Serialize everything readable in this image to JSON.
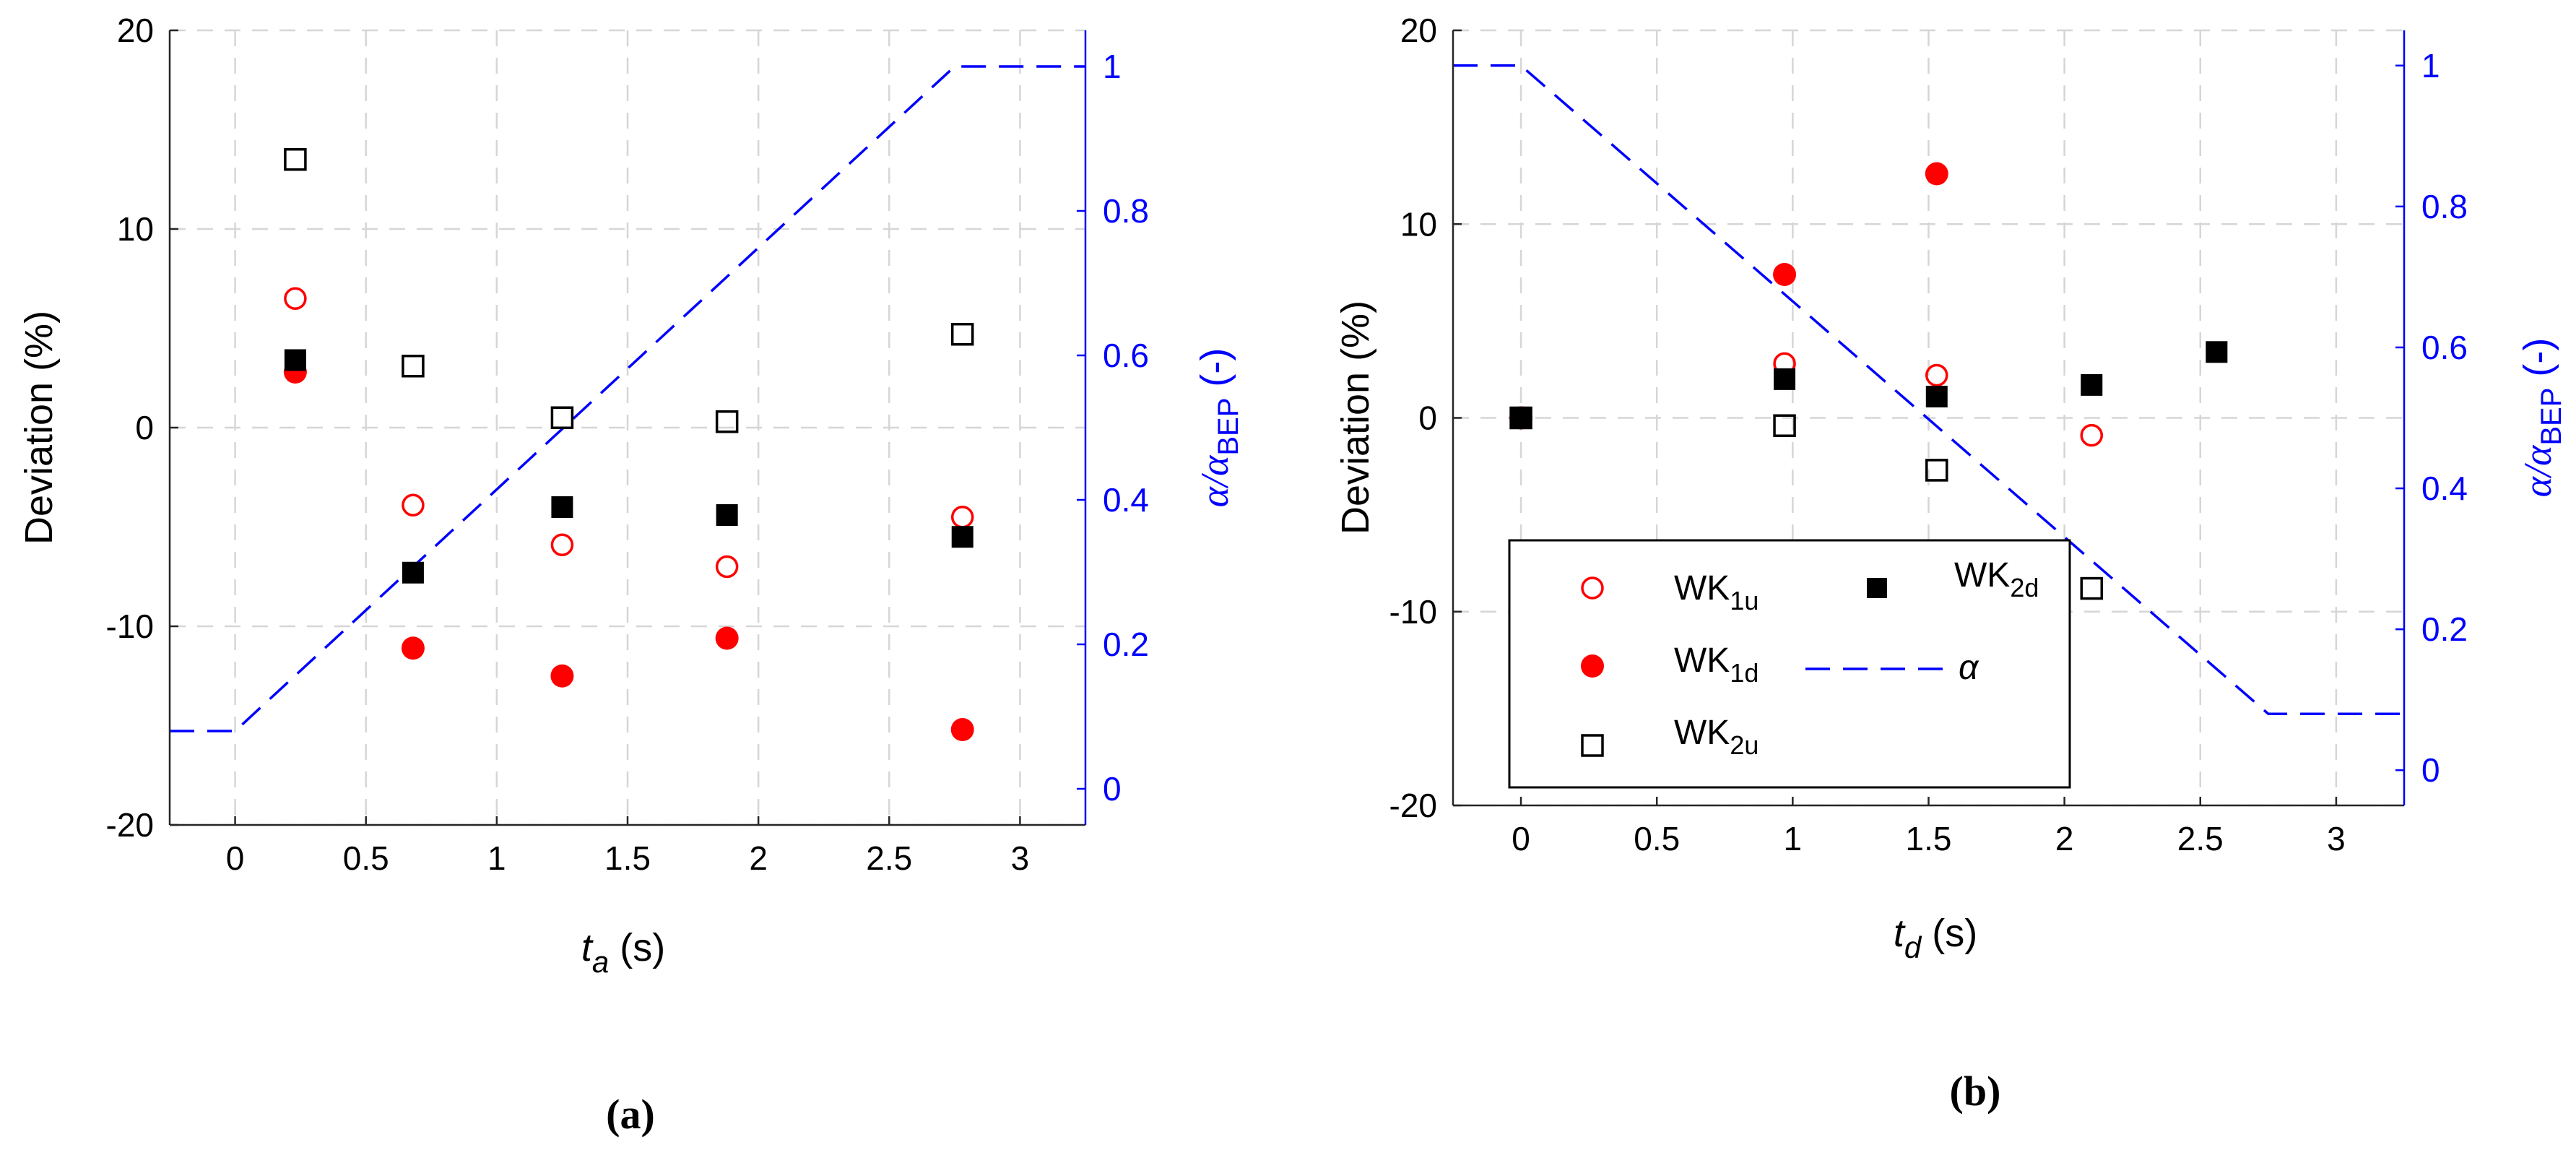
{
  "chart_data": [
    {
      "panel": "a",
      "type": "scatter",
      "panel_label": "(a)",
      "xlabel_var": "t",
      "xlabel_sub": "a",
      "xlabel_unit": " (s)",
      "ylabel": "Deviation (%)",
      "y2label_main": "α/α",
      "y2label_sub": "BEP",
      "y2label_unit": " (-)",
      "xlim": [
        -0.25,
        3.25
      ],
      "ylim": [
        -20,
        20
      ],
      "y2lim": [
        -0.05,
        1.05
      ],
      "xticks": [
        "0",
        "0.5",
        "1",
        "1.5",
        "2",
        "2.5",
        "3"
      ],
      "xtick_values": [
        0,
        0.5,
        1,
        1.5,
        2,
        2.5,
        3
      ],
      "yticks": [
        "-20",
        "-10",
        "0",
        "10",
        "20"
      ],
      "ytick_values": [
        -20,
        -10,
        0,
        10,
        20
      ],
      "y2ticks": [
        "0",
        "0.2",
        "0.4",
        "0.6",
        "0.8",
        "1"
      ],
      "y2tick_values": [
        0,
        0.2,
        0.4,
        0.6,
        0.8,
        1
      ],
      "grid": true,
      "series": [
        {
          "name": "WK1u",
          "marker": "open-circle",
          "color": "#ff0000",
          "x": [
            0.23,
            0.68,
            1.25,
            1.88,
            2.78
          ],
          "y": [
            6.5,
            -3.9,
            -5.9,
            -7.0,
            -4.5
          ]
        },
        {
          "name": "WK1d",
          "marker": "filled-circle",
          "color": "#ff0000",
          "x": [
            0.23,
            0.68,
            1.25,
            1.88,
            2.78
          ],
          "y": [
            2.8,
            -11.1,
            -12.5,
            -10.6,
            -15.2
          ]
        },
        {
          "name": "WK2u",
          "marker": "open-square",
          "color": "#000000",
          "x": [
            0.23,
            0.68,
            1.25,
            1.88,
            2.78
          ],
          "y": [
            13.5,
            3.1,
            0.5,
            0.3,
            4.7
          ]
        },
        {
          "name": "WK2d",
          "marker": "filled-square",
          "color": "#000000",
          "x": [
            0.23,
            0.68,
            1.25,
            1.88,
            2.78
          ],
          "y": [
            3.4,
            -7.3,
            -4.0,
            -4.4,
            -5.5
          ]
        }
      ],
      "alpha_line": {
        "name": "α",
        "color": "#0000ff",
        "style": "dashed",
        "x": [
          -0.25,
          0,
          2.75,
          3.25
        ],
        "y": [
          0.08,
          0.08,
          1.0,
          1.0
        ]
      }
    },
    {
      "panel": "b",
      "type": "scatter",
      "panel_label": "(b)",
      "xlabel_var": "t",
      "xlabel_sub": "d",
      "xlabel_unit": " (s)",
      "ylabel": "Deviation (%)",
      "y2label_main": "α/α",
      "y2label_sub": "BEP",
      "y2label_unit": " (-)",
      "xlim": [
        -0.25,
        3.25
      ],
      "ylim": [
        -20,
        20
      ],
      "y2lim": [
        -0.05,
        1.05
      ],
      "xticks": [
        "0",
        "0.5",
        "1",
        "1.5",
        "2",
        "2.5",
        "3"
      ],
      "xtick_values": [
        0,
        0.5,
        1,
        1.5,
        2,
        2.5,
        3
      ],
      "yticks": [
        "-20",
        "-10",
        "0",
        "10",
        "20"
      ],
      "ytick_values": [
        -20,
        -10,
        0,
        10,
        20
      ],
      "y2ticks": [
        "0",
        "0.2",
        "0.4",
        "0.6",
        "0.8",
        "1"
      ],
      "y2tick_values": [
        0,
        0.2,
        0.4,
        0.6,
        0.8,
        1
      ],
      "grid": true,
      "series": [
        {
          "name": "WK1u",
          "marker": "open-circle",
          "color": "#ff0000",
          "x": [
            0,
            0.97,
            1.53,
            2.1
          ],
          "y": [
            0,
            2.8,
            2.2,
            -0.9
          ]
        },
        {
          "name": "WK1d",
          "marker": "filled-circle",
          "color": "#ff0000",
          "x": [
            0,
            0.97,
            1.53
          ],
          "y": [
            0,
            7.4,
            12.6
          ]
        },
        {
          "name": "WK2u",
          "marker": "open-square",
          "color": "#000000",
          "x": [
            0,
            0.97,
            1.53,
            2.1
          ],
          "y": [
            0,
            -0.4,
            -2.7,
            -8.8
          ]
        },
        {
          "name": "WK2d",
          "marker": "filled-square",
          "color": "#000000",
          "x": [
            0,
            0.97,
            1.53,
            2.1,
            2.56
          ],
          "y": [
            0,
            2.0,
            1.1,
            1.7,
            3.4
          ]
        }
      ],
      "alpha_line": {
        "name": "α",
        "color": "#0000ff",
        "style": "dashed",
        "x": [
          -0.25,
          0,
          2.75,
          3.25
        ],
        "y": [
          1.0,
          1.0,
          0.08,
          0.08
        ]
      },
      "legend": {
        "placement": "lower-left",
        "entries": [
          {
            "main": "WK",
            "sub": "1u",
            "marker": "open-circle"
          },
          {
            "main": "WK",
            "sub": "2d",
            "marker": "filled-square"
          },
          {
            "main": "WK",
            "sub": "1d",
            "marker": "filled-circle"
          },
          {
            "main": "α",
            "sub": "",
            "marker": "dashed-line"
          },
          {
            "main": "WK",
            "sub": "2u",
            "marker": "open-square"
          }
        ]
      }
    }
  ]
}
